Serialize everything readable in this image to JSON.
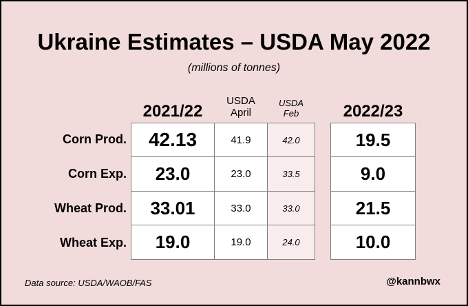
{
  "chart_data": {
    "type": "table",
    "title": "Ukraine Estimates – USDA May 2022",
    "subtitle": "(millions of tonnes)",
    "columns": [
      {
        "key": "y2122",
        "label": "2021/22"
      },
      {
        "key": "april",
        "label_line1": "USDA",
        "label_line2": "April"
      },
      {
        "key": "feb",
        "label_line1": "USDA",
        "label_line2": "Feb"
      },
      {
        "key": "y2223",
        "label": "2022/23"
      }
    ],
    "rows": [
      {
        "label": "Corn Prod.",
        "y2122": "42.13",
        "april": "41.9",
        "feb": "42.0",
        "y2223": "19.5"
      },
      {
        "label": "Corn Exp.",
        "y2122": "23.0",
        "april": "23.0",
        "feb": "33.5",
        "y2223": "9.0"
      },
      {
        "label": "Wheat Prod.",
        "y2122": "33.01",
        "april": "33.0",
        "feb": "33.0",
        "y2223": "21.5"
      },
      {
        "label": "Wheat Exp.",
        "y2122": "19.0",
        "april": "19.0",
        "feb": "24.0",
        "y2223": "10.0"
      }
    ],
    "source": "Data source: USDA/WAOB/FAS",
    "credit": "@kannbwx"
  }
}
